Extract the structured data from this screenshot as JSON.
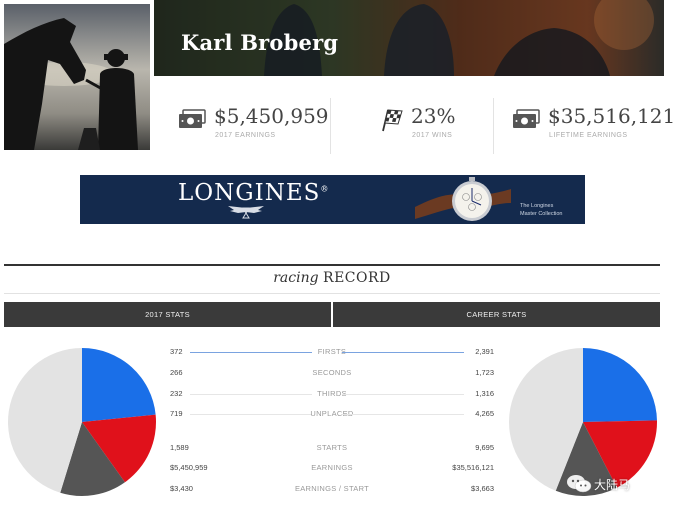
{
  "header": {
    "trainer_name": "Karl Broberg"
  },
  "stats": [
    {
      "icon": "money-icon",
      "value": "$5,450,959",
      "label": "2017 EARNINGS"
    },
    {
      "icon": "checkered-flag-icon",
      "value": "23%",
      "label": "2017 WINS"
    },
    {
      "icon": "money-icon",
      "value": "$35,516,121",
      "label": "LIFETIME EARNINGS"
    }
  ],
  "ad": {
    "brand": "LONGINES",
    "registered": "®",
    "tagline_1": "The Longines",
    "tagline_2": "Master Collection",
    "bg_color": "#142a4d"
  },
  "record": {
    "title_lead": "racing",
    "title_rest": "RECORD",
    "tab_2017": "2017 STATS",
    "tab_career": "CAREER STATS",
    "rows": [
      {
        "label": "FIRSTS",
        "y2017": "372",
        "career": "2,391"
      },
      {
        "label": "SECONDS",
        "y2017": "266",
        "career": "1,723"
      },
      {
        "label": "THIRDS",
        "y2017": "232",
        "career": "1,316"
      },
      {
        "label": "UNPLACED",
        "y2017": "719",
        "career": "4,265"
      },
      {
        "label": "STARTS",
        "y2017": "1,589",
        "career": "9,695"
      },
      {
        "label": "EARNINGS",
        "y2017": "$5,450,959",
        "career": "$35,516,121"
      },
      {
        "label": "EARNINGS / START",
        "y2017": "$3,430",
        "career": "$3,663"
      }
    ]
  },
  "chart_data": [
    {
      "type": "pie",
      "categories": [
        "FIRSTS",
        "SECONDS",
        "THIRDS",
        "UNPLACED"
      ],
      "values": [
        372,
        266,
        232,
        719
      ],
      "colors": [
        "#1a6fe8",
        "#e0111b",
        "#555555",
        "#e3e3e3"
      ]
    },
    {
      "type": "pie",
      "categories": [
        "FIRSTS",
        "SECONDS",
        "THIRDS",
        "UNPLACED"
      ],
      "values": [
        2391,
        1723,
        1316,
        4265
      ],
      "colors": [
        "#1a6fe8",
        "#e0111b",
        "#555555",
        "#e3e3e3"
      ]
    }
  ],
  "colors": {
    "firsts": "#1a6fe8",
    "seconds": "#e0111b",
    "thirds": "#555555",
    "unplaced": "#e3e3e3",
    "accent_line": "#7aa3e0",
    "tab_bar": "#3a3a3a"
  },
  "watermark": {
    "text": "大陆马"
  }
}
